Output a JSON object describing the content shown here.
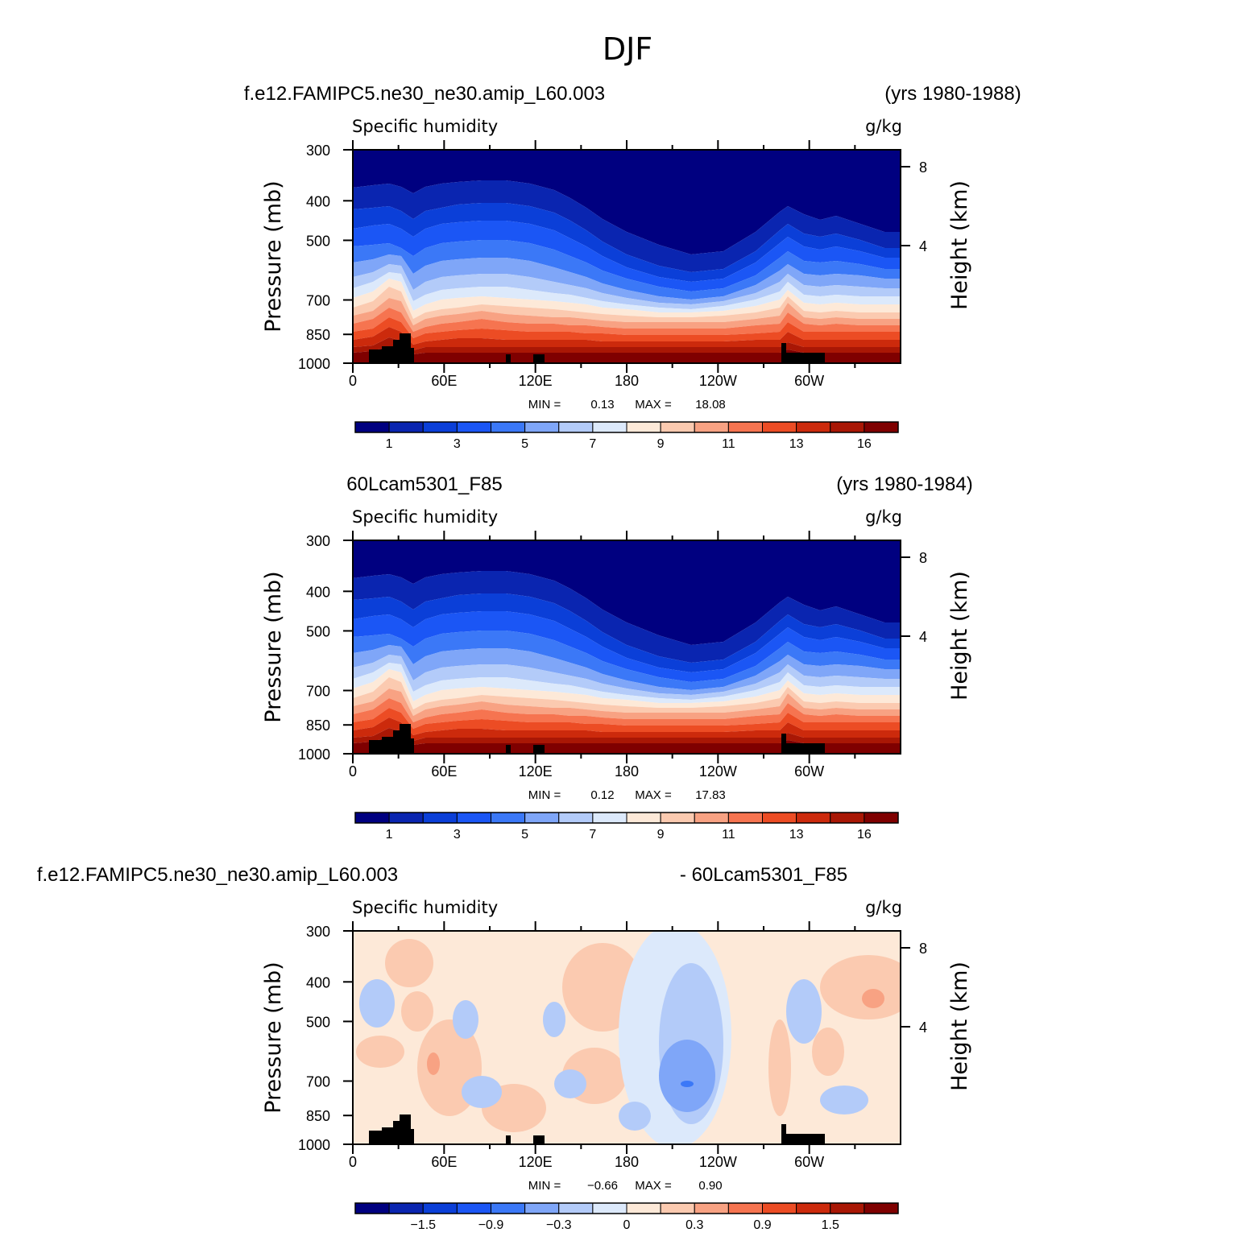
{
  "title": "DJF",
  "colors": {
    "absolute": [
      "#000080",
      "#0a25b0",
      "#0b3fd8",
      "#1b56f5",
      "#3b78f7",
      "#7fa6f8",
      "#b3cbf9",
      "#dce9fb",
      "#fde9d8",
      "#fbcab0",
      "#f8a283",
      "#f67450",
      "#ec4c24",
      "#cc2a0c",
      "#a91705",
      "#7f0000"
    ],
    "difference": [
      "#000080",
      "#0a25b0",
      "#0b3fd8",
      "#1b56f5",
      "#3b78f7",
      "#7fa6f8",
      "#b3cbf9",
      "#dce9fb",
      "#fde9d8",
      "#fbcab0",
      "#f8a283",
      "#f67450",
      "#ec4c24",
      "#cc2a0c",
      "#a91705",
      "#7f0000"
    ],
    "terrain": "#000000"
  },
  "chart_data": [
    {
      "type": "heatmap",
      "case_left": "f.e12.FAMIPC5.ne30_ne30.amip_L60.003",
      "case_right": "(yrs 1980-1988)",
      "variable": "Specific humidity",
      "units": "g/kg",
      "xlabel": "",
      "ylabel": "Pressure (mb)",
      "y2label": "Height (km)",
      "x_ticks": [
        "0",
        "60E",
        "120E",
        "180",
        "120W",
        "60W"
      ],
      "y_ticks": [
        "300",
        "400",
        "500",
        "700",
        "850",
        "1000"
      ],
      "y2_ticks": [
        "8",
        "4"
      ],
      "min_label": "MIN =",
      "min_value": "0.13",
      "max_label": "MAX =",
      "max_value": "18.08",
      "colorbar_labels": [
        "1",
        "3",
        "5",
        "7",
        "9",
        "11",
        "13",
        "16"
      ]
    },
    {
      "type": "heatmap",
      "case_left": "60Lcam5301_F85",
      "case_right": "(yrs 1980-1984)",
      "variable": "Specific humidity",
      "units": "g/kg",
      "xlabel": "",
      "ylabel": "Pressure (mb)",
      "y2label": "Height (km)",
      "x_ticks": [
        "0",
        "60E",
        "120E",
        "180",
        "120W",
        "60W"
      ],
      "y_ticks": [
        "300",
        "400",
        "500",
        "700",
        "850",
        "1000"
      ],
      "y2_ticks": [
        "8",
        "4"
      ],
      "min_label": "MIN =",
      "min_value": "0.12",
      "max_label": "MAX =",
      "max_value": "17.83",
      "colorbar_labels": [
        "1",
        "3",
        "5",
        "7",
        "9",
        "11",
        "13",
        "16"
      ]
    },
    {
      "type": "heatmap",
      "case_left": "f.e12.FAMIPC5.ne30_ne30.amip_L60.003",
      "case_right": "- 60Lcam5301_F85",
      "variable": "Specific humidity",
      "units": "g/kg",
      "xlabel": "",
      "ylabel": "Pressure (mb)",
      "y2label": "Height (km)",
      "x_ticks": [
        "0",
        "60E",
        "120E",
        "180",
        "120W",
        "60W"
      ],
      "y_ticks": [
        "300",
        "400",
        "500",
        "700",
        "850",
        "1000"
      ],
      "y2_ticks": [
        "8",
        "4"
      ],
      "min_label": "MIN =",
      "min_value": "−0.66",
      "max_label": "MAX =",
      "max_value": "0.90",
      "colorbar_labels": [
        "−1.5",
        "−0.9",
        "−0.3",
        "0",
        "0.3",
        "0.9",
        "1.5"
      ]
    }
  ]
}
